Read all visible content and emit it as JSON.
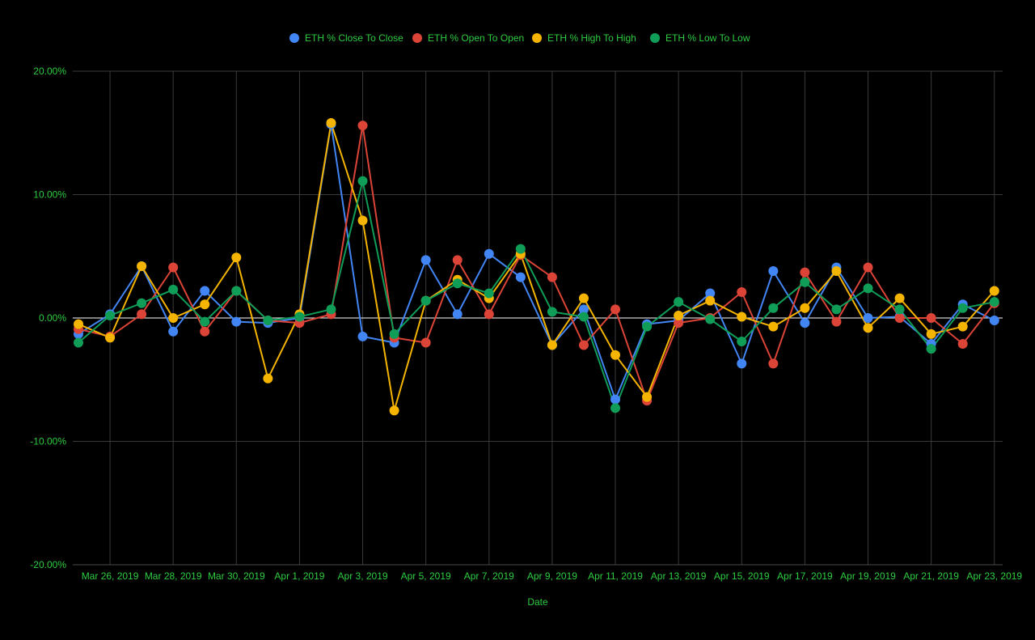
{
  "chart_data": {
    "type": "line",
    "xlabel": "Date",
    "ylabel": "",
    "ylim": [
      -20,
      20
    ],
    "y_ticks": [
      20,
      10,
      0,
      -10,
      -20
    ],
    "y_tick_labels": [
      "20.00%",
      "10.00%",
      "0.00%",
      "-10.00%",
      "-20.00%"
    ],
    "x_tick_labels": [
      "Mar 26, 2019",
      "Mar 28, 2019",
      "Mar 30, 2019",
      "Apr 1, 2019",
      "Apr 3, 2019",
      "Apr 5, 2019",
      "Apr 7, 2019",
      "Apr 9, 2019",
      "Apr 11, 2019",
      "Apr 13, 2019",
      "Apr 15, 2019",
      "Apr 17, 2019",
      "Apr 19, 2019",
      "Apr 21, 2019",
      "Apr 23, 2019"
    ],
    "x": [
      "2019-03-25",
      "2019-03-26",
      "2019-03-27",
      "2019-03-28",
      "2019-03-29",
      "2019-03-30",
      "2019-03-31",
      "2019-04-01",
      "2019-04-02",
      "2019-04-03",
      "2019-04-04",
      "2019-04-05",
      "2019-04-06",
      "2019-04-07",
      "2019-04-08",
      "2019-04-09",
      "2019-04-10",
      "2019-04-11",
      "2019-04-12",
      "2019-04-13",
      "2019-04-14",
      "2019-04-15",
      "2019-04-16",
      "2019-04-17",
      "2019-04-18",
      "2019-04-19",
      "2019-04-20",
      "2019-04-21",
      "2019-04-22",
      "2019-04-23"
    ],
    "legend_position": "top",
    "grid": true,
    "series": [
      {
        "name": "ETH % Close To Close",
        "color": "#4285f4",
        "values": [
          -1.3,
          0.3,
          4.2,
          -1.1,
          2.2,
          -0.3,
          -0.4,
          0.0,
          15.7,
          -1.5,
          -2.0,
          4.7,
          0.3,
          5.2,
          3.3,
          -2.2,
          0.7,
          -6.6,
          -0.5,
          -0.2,
          2.0,
          -3.7,
          3.8,
          -0.4,
          4.1,
          0.0,
          0.1,
          -2.1,
          1.1,
          -0.2
        ]
      },
      {
        "name": "ETH % Open To Open",
        "color": "#db4437",
        "values": [
          -0.9,
          -1.5,
          0.3,
          4.1,
          -1.1,
          2.2,
          -0.2,
          -0.4,
          0.3,
          15.6,
          -1.6,
          -2.0,
          4.7,
          0.3,
          5.1,
          3.3,
          -2.2,
          0.7,
          -6.7,
          -0.4,
          0.0,
          2.1,
          -3.7,
          3.7,
          -0.3,
          4.1,
          0.0,
          0.0,
          -2.1,
          1.2
        ]
      },
      {
        "name": "ETH % High To High",
        "color": "#f4b400",
        "values": [
          -0.5,
          -1.6,
          4.2,
          0.0,
          1.1,
          4.9,
          -4.9,
          0.3,
          15.8,
          7.9,
          -7.5,
          1.4,
          3.1,
          1.6,
          5.2,
          -2.2,
          1.6,
          -3.0,
          -6.4,
          0.2,
          1.4,
          0.1,
          -0.7,
          0.8,
          3.8,
          -0.8,
          1.6,
          -1.3,
          -0.7,
          2.2
        ]
      },
      {
        "name": "ETH % Low To Low",
        "color": "#0f9d58",
        "values": [
          -2.0,
          0.2,
          1.2,
          2.3,
          -0.3,
          2.2,
          -0.2,
          0.1,
          0.7,
          11.1,
          -1.3,
          1.4,
          2.8,
          2.0,
          5.6,
          0.5,
          0.1,
          -7.3,
          -0.7,
          1.3,
          -0.1,
          -1.9,
          0.8,
          2.9,
          0.7,
          2.4,
          0.7,
          -2.5,
          0.8,
          1.3
        ]
      }
    ]
  }
}
